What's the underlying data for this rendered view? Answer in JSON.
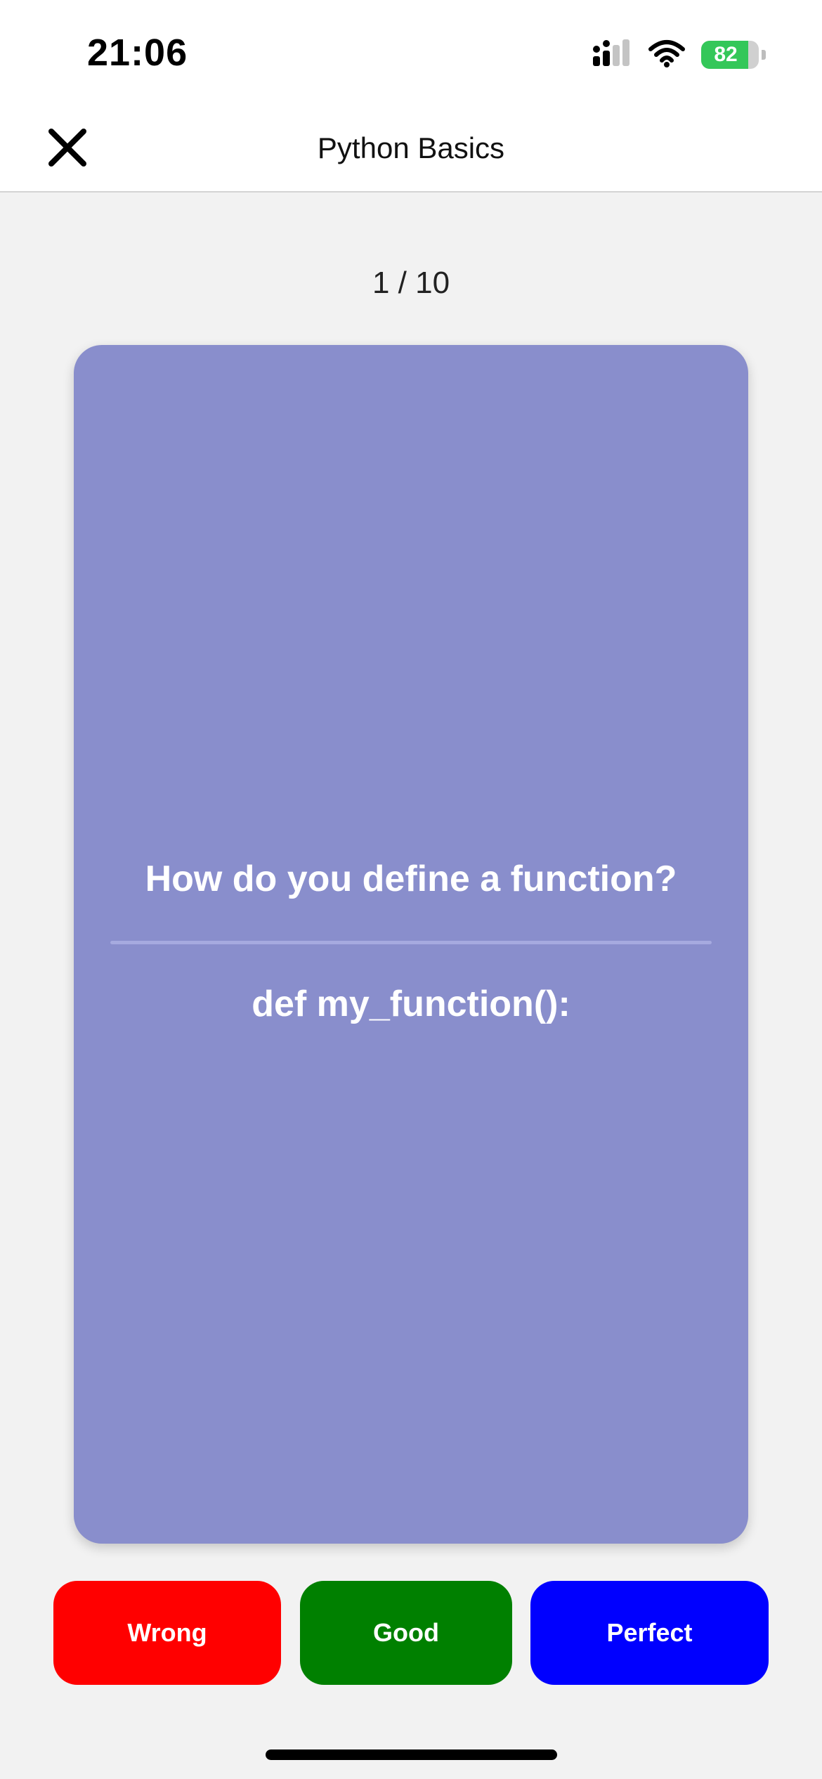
{
  "status_bar": {
    "time": "21:06",
    "battery_level": "82",
    "battery_fraction": 0.82
  },
  "header": {
    "title": "Python Basics",
    "close_icon": "close-icon"
  },
  "progress": {
    "text": "1 / 10"
  },
  "card": {
    "question": "How do you define a function?",
    "answer": "def my_function():",
    "color": "#898ecc"
  },
  "buttons": {
    "wrong": "Wrong",
    "good": "Good",
    "perfect": "Perfect"
  },
  "colors": {
    "wrong": "#ff0000",
    "good": "#008000",
    "perfect": "#0000ff"
  }
}
